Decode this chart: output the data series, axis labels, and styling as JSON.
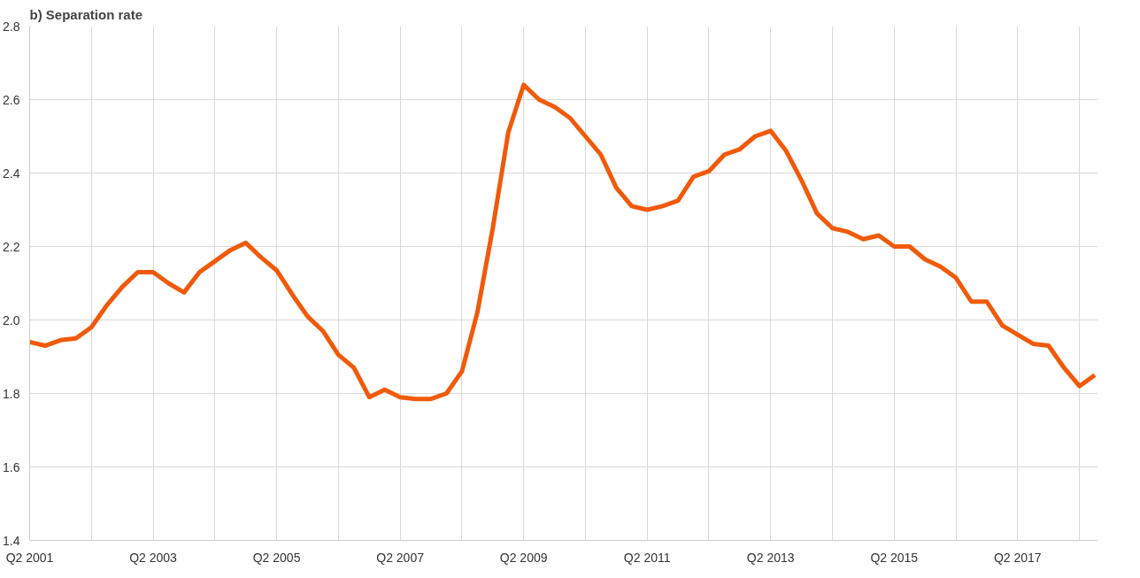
{
  "chart_data": {
    "type": "line",
    "title": "b) Separation rate",
    "categories": [
      "Q2 2001",
      null,
      null,
      null,
      null,
      null,
      null,
      null,
      "Q2 2003",
      null,
      null,
      null,
      null,
      null,
      null,
      null,
      "Q2 2005",
      null,
      null,
      null,
      null,
      null,
      null,
      null,
      "Q2 2007",
      null,
      null,
      null,
      null,
      null,
      null,
      null,
      "Q2 2009",
      null,
      null,
      null,
      null,
      null,
      null,
      null,
      "Q2 2011",
      null,
      null,
      null,
      null,
      null,
      null,
      null,
      "Q2 2013",
      null,
      null,
      null,
      null,
      null,
      null,
      null,
      "Q2 2015",
      null,
      null,
      null,
      null,
      null,
      null,
      null,
      "Q2 2017",
      null,
      null,
      null,
      null,
      null
    ],
    "series": [
      {
        "color": "#f05a0a",
        "values": [
          1.94,
          1.93,
          1.945,
          1.95,
          1.98,
          2.04,
          2.09,
          2.13,
          2.13,
          2.1,
          2.075,
          2.13,
          2.16,
          2.19,
          2.21,
          2.17,
          2.135,
          2.07,
          2.01,
          1.97,
          1.905,
          1.87,
          1.79,
          1.81,
          1.79,
          1.785,
          1.785,
          1.8,
          1.86,
          2.02,
          2.25,
          2.51,
          2.64,
          2.6,
          2.58,
          2.55,
          2.5,
          2.45,
          2.36,
          2.31,
          2.3,
          2.31,
          2.325,
          2.39,
          2.405,
          2.45,
          2.465,
          2.5,
          2.515,
          2.46,
          2.38,
          2.29,
          2.25,
          2.24,
          2.22,
          2.23,
          2.2,
          2.2,
          2.165,
          2.145,
          2.115,
          2.05,
          2.05,
          1.985,
          1.96,
          1.935,
          1.93,
          1.87,
          1.82,
          1.85
        ]
      }
    ],
    "ylim": [
      1.4,
      2.8
    ],
    "yticks": [
      1.4,
      1.6,
      1.8,
      {
        "value": 2,
        "label": "2.0"
      },
      2.2,
      2.4,
      2.6,
      2.8
    ],
    "grid": true,
    "marker": "none",
    "line_style": "solid"
  }
}
